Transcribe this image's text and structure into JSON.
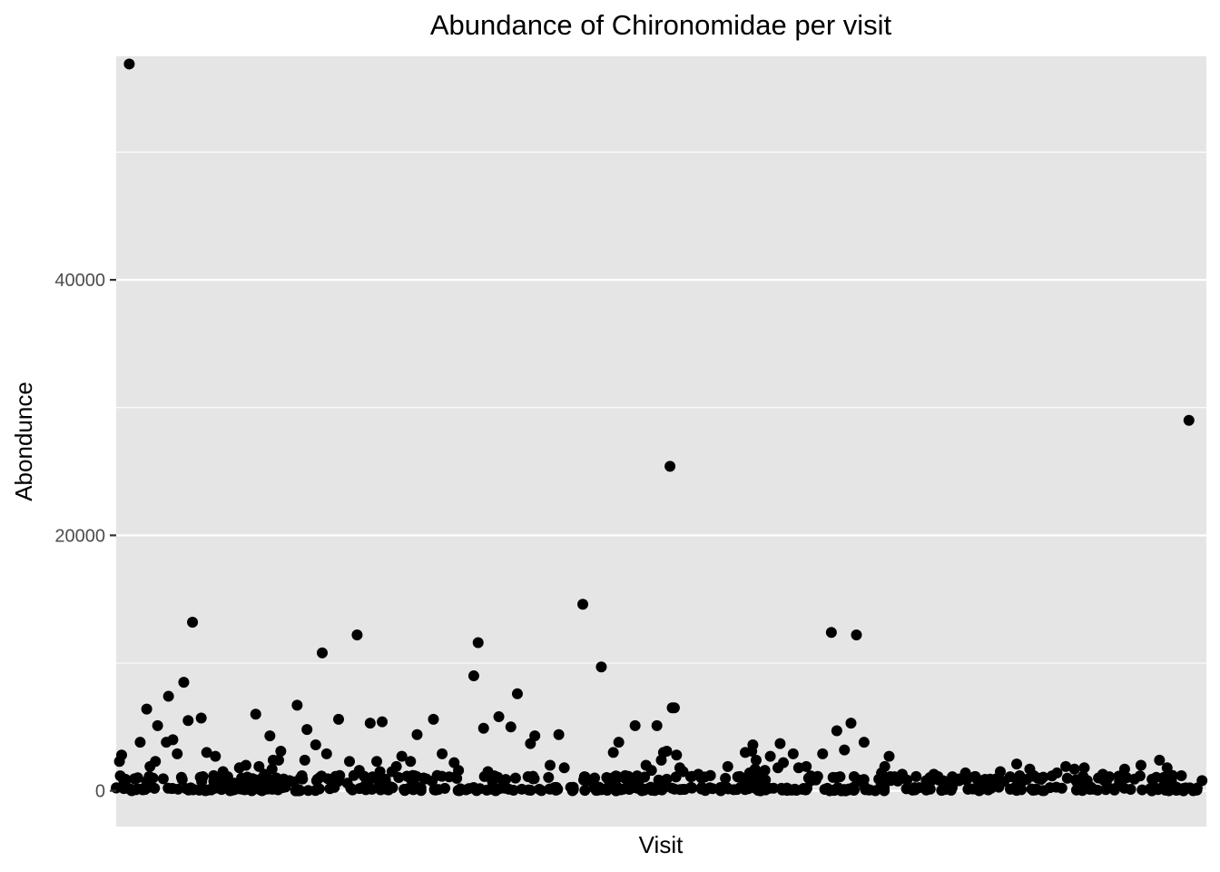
{
  "chart_data": {
    "type": "scatter",
    "title": "Abundance of Chironomidae per visit",
    "xlabel": "Visit",
    "ylabel": "Abondunce",
    "ylim": [
      -2800,
      57500
    ],
    "xlim": [
      0,
      1000
    ],
    "y_ticks": [
      0,
      20000,
      40000
    ],
    "y_tick_labels": [
      "0",
      "20000",
      "40000"
    ],
    "x_tick_labels": [],
    "grid": true,
    "legend": "none",
    "colors": {
      "panel": "#e5e5e5",
      "grid": "#ffffff",
      "point": "#000000"
    },
    "series": [
      {
        "x": [
          3,
          5,
          8,
          12,
          22,
          28,
          31,
          36,
          38,
          46,
          48,
          52,
          56,
          62,
          66,
          70,
          78,
          83,
          91,
          96,
          98,
          102,
          104,
          108,
          113,
          115,
          117,
          119,
          122,
          124,
          128,
          131,
          133,
          136,
          138,
          141,
          143,
          144,
          147,
          149,
          151,
          153,
          159,
          163,
          166,
          173,
          175,
          183,
          189,
          193,
          198,
          204,
          205,
          212,
          214,
          218,
          221,
          223,
          233,
          239,
          242,
          244,
          247,
          248,
          253,
          257,
          262,
          270,
          272,
          276,
          282,
          291,
          299,
          310,
          314,
          328,
          332,
          337,
          341,
          351,
          362,
          368,
          380,
          384,
          398,
          406,
          411,
          428,
          445,
          456,
          461,
          476,
          486,
          491,
          496,
          500,
          502,
          505,
          508,
          510,
          512,
          514,
          517,
          520,
          527,
          534,
          545,
          561,
          577,
          581,
          583,
          584,
          586,
          587,
          589,
          595,
          600,
          607,
          609,
          612,
          621,
          626,
          633,
          648,
          656,
          661,
          668,
          674,
          679,
          686,
          702,
          705,
          709,
          714,
          721,
          743,
          750,
          767,
          779,
          794,
          797,
          811,
          820,
          826,
          838,
          845,
          863,
          871,
          879,
          888,
          901,
          905,
          911,
          925,
          940,
          957,
          964,
          969,
          984,
          996
        ],
        "y": [
          2300,
          2800,
          600,
          56900,
          3800,
          6400,
          1900,
          2300,
          5100,
          3800,
          7400,
          4000,
          2900,
          8500,
          5500,
          13200,
          5700,
          3000,
          2700,
          300,
          1500,
          700,
          400,
          600,
          1800,
          1000,
          500,
          2000,
          500,
          200,
          6000,
          1900,
          800,
          1300,
          700,
          4300,
          1700,
          2400,
          1000,
          2400,
          3100,
          500,
          800,
          700,
          6700,
          2400,
          4800,
          3600,
          10800,
          2900,
          400,
          5600,
          1200,
          600,
          2300,
          1200,
          12200,
          1600,
          5300,
          2300,
          1500,
          5400,
          800,
          500,
          1500,
          1900,
          2700,
          2300,
          1200,
          4400,
          1000,
          5600,
          2900,
          2200,
          1600,
          9000,
          11600,
          4900,
          1500,
          5800,
          5000,
          7600,
          3700,
          4300,
          2000,
          4400,
          1800,
          14600,
          9700,
          3000,
          3800,
          5100,
          2000,
          1600,
          5100,
          2400,
          3000,
          3100,
          25400,
          6500,
          6500,
          2800,
          1800,
          1500,
          1100,
          1300,
          1200,
          1900,
          3000,
          1400,
          3100,
          3600,
          1700,
          2400,
          1100,
          1600,
          2700,
          1800,
          3700,
          2200,
          2900,
          1800,
          1900,
          2900,
          12400,
          4700,
          3200,
          5300,
          12200,
          3800,
          1400,
          1900,
          2700,
          1100,
          1300,
          800,
          1300,
          1100,
          1400,
          800,
          900,
          1500,
          1100,
          2100,
          1700,
          1000,
          1400,
          1900,
          1700,
          1800,
          1000,
          1300,
          1100,
          1700,
          2000,
          2400,
          1800,
          1200,
          29000,
          800
        ]
      }
    ]
  }
}
